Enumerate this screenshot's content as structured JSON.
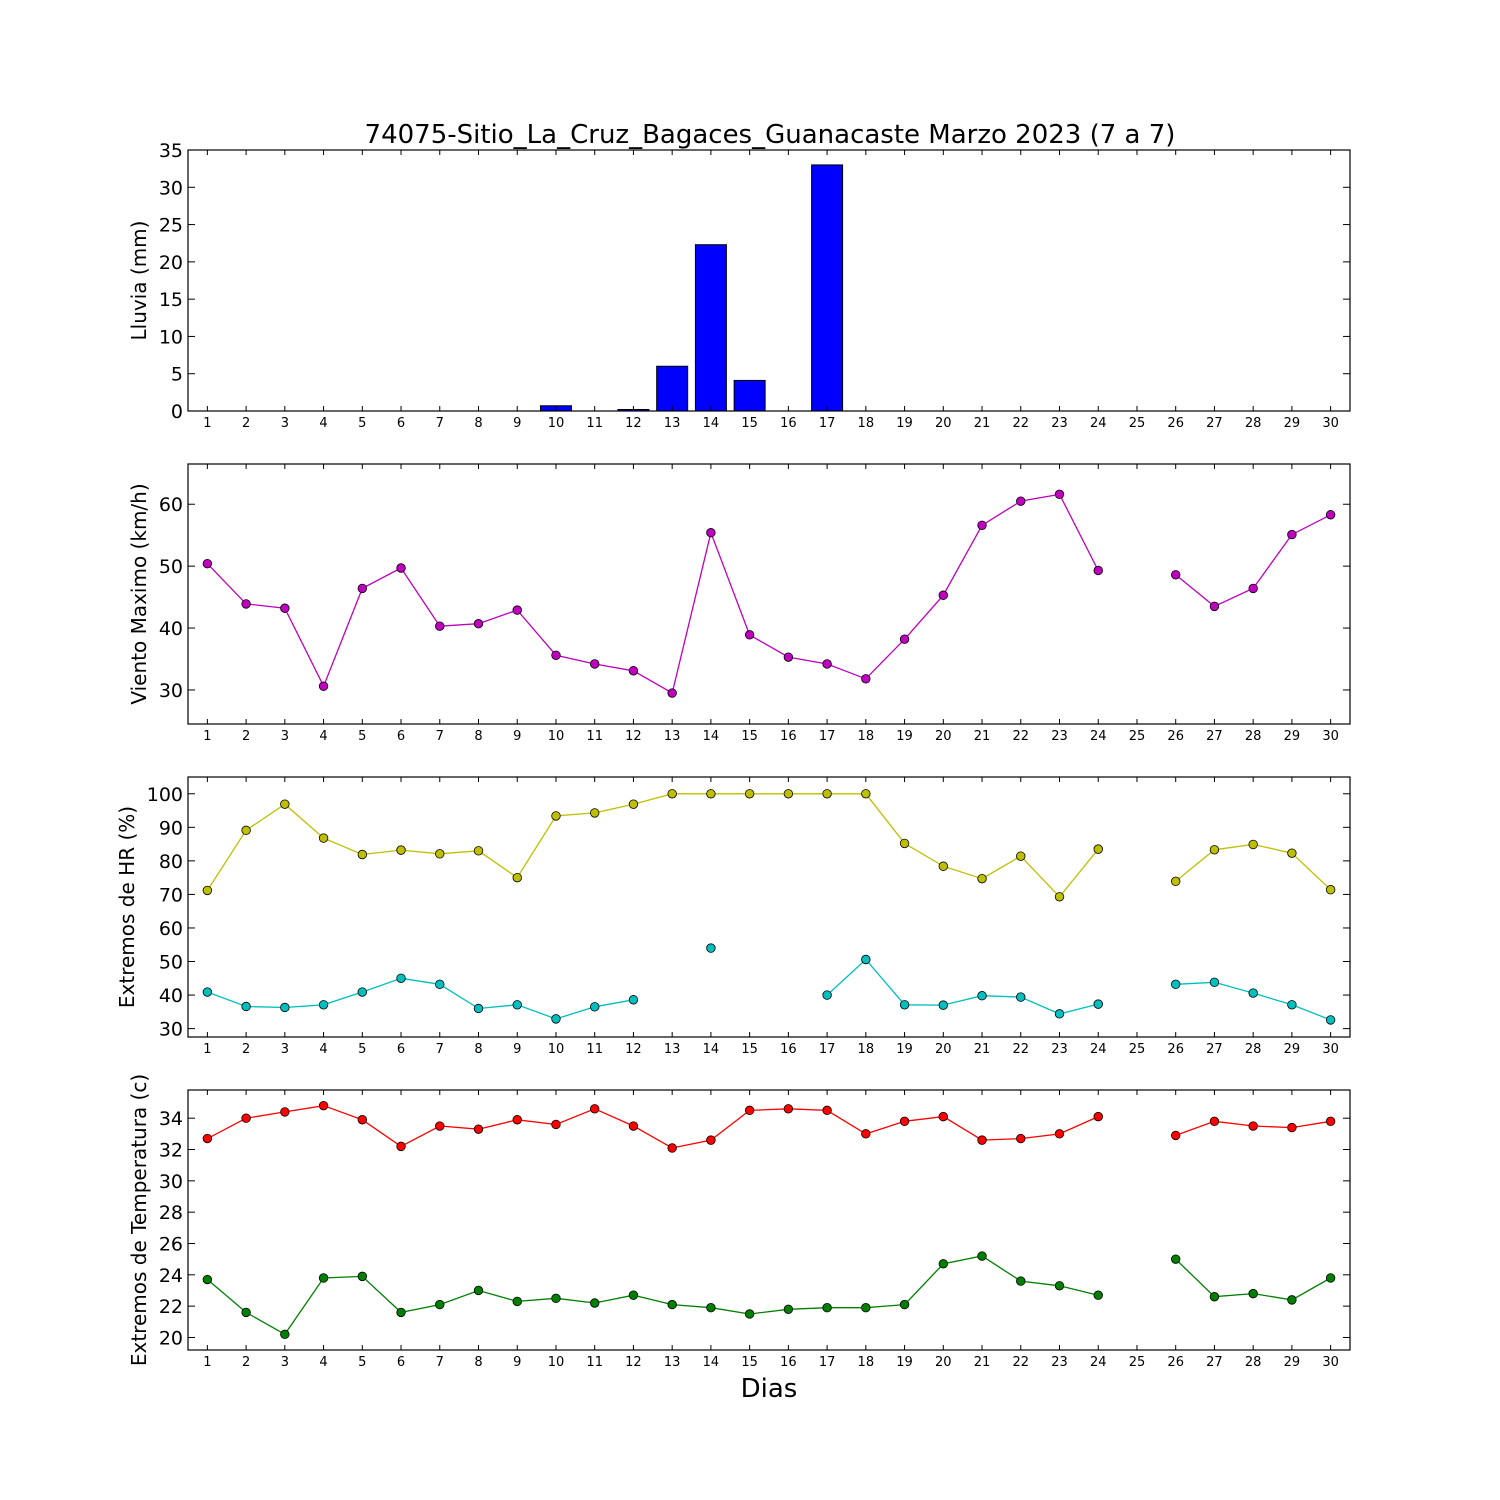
{
  "figure": {
    "title": "74075-Sitio_La_Cruz_Bagaces_Guanacaste Marzo 2023  (7 a 7)",
    "xlabel": "Dias"
  },
  "chart_data": [
    {
      "type": "bar",
      "name": "lluvia",
      "ylabel": "Lluvia (mm)",
      "ylim": [
        0,
        35
      ],
      "yticks": [
        0,
        5,
        10,
        15,
        20,
        25,
        30,
        35
      ],
      "x": [
        1,
        2,
        3,
        4,
        5,
        6,
        7,
        8,
        9,
        10,
        11,
        12,
        13,
        14,
        15,
        16,
        17,
        18,
        19,
        20,
        21,
        22,
        23,
        24,
        25,
        26,
        27,
        28,
        29,
        30
      ],
      "values": [
        0,
        0,
        0,
        0,
        0,
        0,
        0,
        0,
        0,
        0.7,
        0,
        0.2,
        6.0,
        22.3,
        4.1,
        0,
        33.0,
        0,
        0,
        0,
        0,
        0,
        0,
        0,
        0,
        0,
        0,
        0,
        0,
        0
      ],
      "color": "#0000ff",
      "grid": false
    },
    {
      "type": "line",
      "name": "viento",
      "ylabel": "Viento Maximo (km/h)",
      "ylim": [
        24.5,
        66.5
      ],
      "yticks": [
        30,
        40,
        50,
        60
      ],
      "x": [
        1,
        2,
        3,
        4,
        5,
        6,
        7,
        8,
        9,
        10,
        11,
        12,
        13,
        14,
        15,
        16,
        17,
        18,
        19,
        20,
        21,
        22,
        23,
        24,
        25,
        26,
        27,
        28,
        29,
        30
      ],
      "series": [
        {
          "color": "#bf00bf",
          "values": [
            50.4,
            43.9,
            43.2,
            30.6,
            46.4,
            49.7,
            40.3,
            40.7,
            42.9,
            35.6,
            34.2,
            33.1,
            29.5,
            55.4,
            38.9,
            35.3,
            34.2,
            31.8,
            38.2,
            45.3,
            56.6,
            60.5,
            61.6,
            49.3,
            null,
            48.6,
            43.5,
            46.4,
            55.1,
            58.3
          ]
        }
      ],
      "grid": false
    },
    {
      "type": "line",
      "name": "humedad",
      "ylabel": "Extremos de HR (%)",
      "ylim": [
        27.5,
        105
      ],
      "yticks": [
        30,
        40,
        50,
        60,
        70,
        80,
        90,
        100
      ],
      "x": [
        1,
        2,
        3,
        4,
        5,
        6,
        7,
        8,
        9,
        10,
        11,
        12,
        13,
        14,
        15,
        16,
        17,
        18,
        19,
        20,
        21,
        22,
        23,
        24,
        25,
        26,
        27,
        28,
        29,
        30
      ],
      "series": [
        {
          "color": "#bfbf00",
          "values": [
            71.2,
            89.1,
            96.9,
            86.8,
            81.9,
            83.2,
            82.1,
            83.0,
            75.0,
            93.4,
            94.3,
            96.9,
            100,
            100,
            100,
            100,
            100,
            100,
            85.2,
            78.4,
            74.7,
            81.4,
            69.3,
            83.5,
            null,
            73.9,
            83.3,
            84.9,
            82.3,
            71.4
          ]
        },
        {
          "color": "#00bfbf",
          "values": [
            40.9,
            36.6,
            36.3,
            37.1,
            40.9,
            45.0,
            43.2,
            36.0,
            37.1,
            32.9,
            36.5,
            38.6,
            null,
            54.0,
            null,
            null,
            40.0,
            50.6,
            37.1,
            37.0,
            39.8,
            39.4,
            34.4,
            37.3,
            null,
            43.2,
            43.8,
            40.6,
            37.1,
            32.6
          ]
        }
      ],
      "grid": false
    },
    {
      "type": "line",
      "name": "temperatura",
      "ylabel": "Extremos de Temperatura (c)",
      "ylim": [
        19.2,
        35.8
      ],
      "yticks": [
        20,
        22,
        24,
        26,
        28,
        30,
        32,
        34
      ],
      "x": [
        1,
        2,
        3,
        4,
        5,
        6,
        7,
        8,
        9,
        10,
        11,
        12,
        13,
        14,
        15,
        16,
        17,
        18,
        19,
        20,
        21,
        22,
        23,
        24,
        25,
        26,
        27,
        28,
        29,
        30
      ],
      "series": [
        {
          "color": "#ff0000",
          "values": [
            32.7,
            34.0,
            34.4,
            34.8,
            33.9,
            32.2,
            33.5,
            33.3,
            33.9,
            33.6,
            34.6,
            33.5,
            32.1,
            32.6,
            34.5,
            34.6,
            34.5,
            33.0,
            33.8,
            34.1,
            32.6,
            32.7,
            33.0,
            34.1,
            null,
            32.9,
            33.8,
            33.5,
            33.4,
            33.8
          ]
        },
        {
          "color": "#007f00",
          "values": [
            23.7,
            21.6,
            20.2,
            23.8,
            23.9,
            21.6,
            22.1,
            23.0,
            22.3,
            22.5,
            22.2,
            22.7,
            22.1,
            21.9,
            21.5,
            21.8,
            21.9,
            21.9,
            22.1,
            24.7,
            25.2,
            23.6,
            23.3,
            22.7,
            null,
            25.0,
            22.6,
            22.8,
            22.4,
            23.8
          ]
        }
      ],
      "grid": false
    }
  ]
}
